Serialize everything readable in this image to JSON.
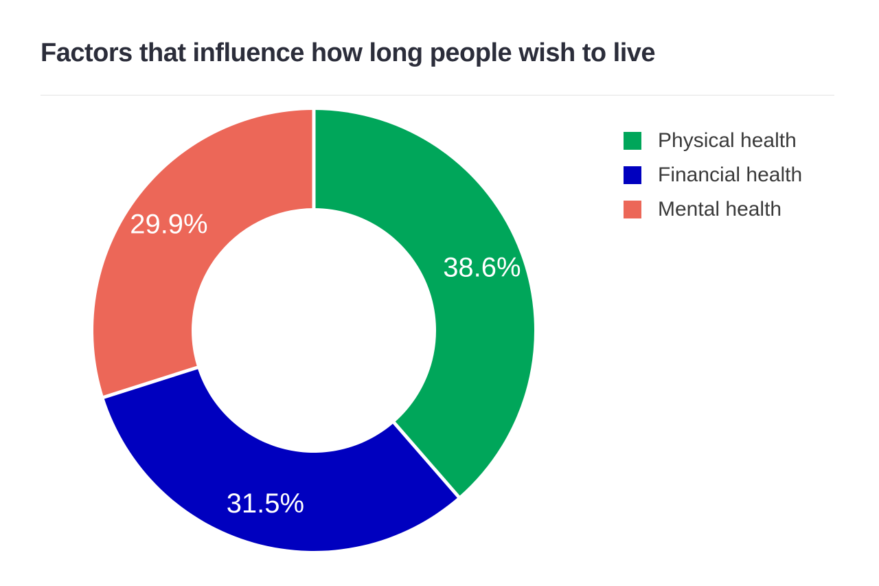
{
  "chart_data": {
    "type": "pie",
    "donut": true,
    "title": "Factors that influence how long people wish to live",
    "categories": [
      "Physical health",
      "Financial health",
      "Mental health"
    ],
    "values": [
      38.6,
      31.5,
      29.9
    ],
    "data_labels": [
      "38.6%",
      "31.5%",
      "29.9%"
    ],
    "colors": [
      "#00a65a",
      "#0000bf",
      "#ec6758"
    ],
    "start_angle": "top",
    "direction": "clockwise",
    "legend_position": "right"
  }
}
